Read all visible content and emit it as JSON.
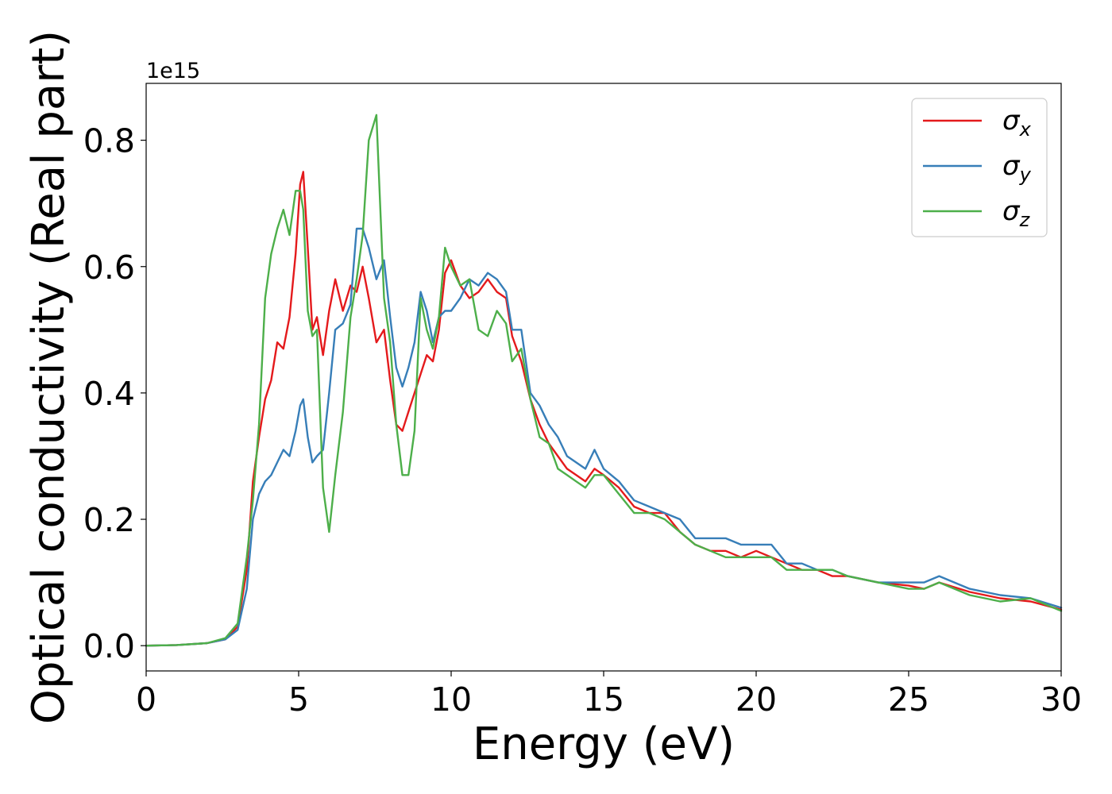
{
  "chart_data": {
    "type": "line",
    "title": "",
    "xlabel": "Energy (eV)",
    "ylabel": "Optical conductivity (Real part)",
    "y_offset_label": "1e15",
    "xlim": [
      0,
      30
    ],
    "ylim": [
      -0.04,
      0.89
    ],
    "xticks": [
      0,
      5,
      10,
      15,
      20,
      25,
      30
    ],
    "xtick_labels": [
      "0",
      "5",
      "10",
      "15",
      "20",
      "25",
      "30"
    ],
    "yticks": [
      0.0,
      0.2,
      0.4,
      0.6,
      0.8
    ],
    "ytick_labels": [
      "0.0",
      "0.2",
      "0.4",
      "0.6",
      "0.8"
    ],
    "grid": false,
    "legend_position": "top-right",
    "series": [
      {
        "name": "σx",
        "symbol": "σ",
        "sub": "x",
        "color": "#e41a1c",
        "x": [
          0,
          1,
          2,
          2.6,
          3.0,
          3.3,
          3.5,
          3.7,
          3.9,
          4.1,
          4.3,
          4.5,
          4.7,
          4.9,
          5.05,
          5.15,
          5.3,
          5.45,
          5.6,
          5.8,
          6.0,
          6.2,
          6.45,
          6.7,
          6.9,
          7.1,
          7.3,
          7.55,
          7.8,
          8.0,
          8.2,
          8.4,
          8.6,
          8.8,
          9.0,
          9.2,
          9.4,
          9.6,
          9.8,
          10.0,
          10.3,
          10.6,
          10.9,
          11.2,
          11.5,
          11.8,
          12.0,
          12.3,
          12.6,
          12.9,
          13.2,
          13.5,
          13.8,
          14.1,
          14.4,
          14.7,
          15.0,
          15.5,
          16.0,
          16.5,
          17.0,
          17.5,
          18.0,
          18.5,
          19.0,
          19.5,
          20.0,
          20.5,
          21.0,
          21.5,
          22.0,
          22.5,
          23.0,
          24.0,
          25.0,
          25.5,
          26.0,
          27.0,
          28.0,
          29.0,
          30.0
        ],
        "y": [
          0.0,
          0.001,
          0.004,
          0.01,
          0.03,
          0.12,
          0.26,
          0.33,
          0.39,
          0.42,
          0.48,
          0.47,
          0.52,
          0.62,
          0.73,
          0.75,
          0.63,
          0.5,
          0.52,
          0.46,
          0.53,
          0.58,
          0.53,
          0.57,
          0.56,
          0.6,
          0.55,
          0.48,
          0.5,
          0.42,
          0.35,
          0.34,
          0.37,
          0.4,
          0.43,
          0.46,
          0.45,
          0.5,
          0.59,
          0.61,
          0.57,
          0.55,
          0.56,
          0.58,
          0.56,
          0.55,
          0.49,
          0.45,
          0.39,
          0.35,
          0.32,
          0.3,
          0.28,
          0.27,
          0.26,
          0.28,
          0.27,
          0.25,
          0.22,
          0.21,
          0.21,
          0.18,
          0.16,
          0.15,
          0.15,
          0.14,
          0.15,
          0.14,
          0.13,
          0.12,
          0.12,
          0.11,
          0.11,
          0.1,
          0.095,
          0.09,
          0.1,
          0.085,
          0.075,
          0.07,
          0.057
        ]
      },
      {
        "name": "σy",
        "symbol": "σ",
        "sub": "y",
        "color": "#377eb8",
        "x": [
          0,
          1,
          2,
          2.6,
          3.0,
          3.3,
          3.5,
          3.7,
          3.9,
          4.1,
          4.3,
          4.5,
          4.7,
          4.9,
          5.05,
          5.15,
          5.3,
          5.45,
          5.6,
          5.8,
          6.0,
          6.2,
          6.45,
          6.7,
          6.9,
          7.1,
          7.3,
          7.55,
          7.8,
          8.0,
          8.2,
          8.4,
          8.6,
          8.8,
          9.0,
          9.2,
          9.4,
          9.6,
          9.8,
          10.0,
          10.3,
          10.6,
          10.9,
          11.2,
          11.5,
          11.8,
          12.0,
          12.3,
          12.6,
          12.9,
          13.2,
          13.5,
          13.8,
          14.1,
          14.4,
          14.7,
          15.0,
          15.5,
          16.0,
          16.5,
          17.0,
          17.5,
          18.0,
          18.5,
          19.0,
          19.5,
          20.0,
          20.5,
          21.0,
          21.5,
          22.0,
          22.5,
          23.0,
          24.0,
          25.0,
          25.5,
          26.0,
          27.0,
          28.0,
          29.0,
          30.0
        ],
        "y": [
          0.0,
          0.001,
          0.004,
          0.01,
          0.025,
          0.09,
          0.2,
          0.24,
          0.26,
          0.27,
          0.29,
          0.31,
          0.3,
          0.34,
          0.38,
          0.39,
          0.33,
          0.29,
          0.3,
          0.31,
          0.4,
          0.5,
          0.51,
          0.54,
          0.66,
          0.66,
          0.63,
          0.58,
          0.61,
          0.52,
          0.44,
          0.41,
          0.44,
          0.48,
          0.56,
          0.53,
          0.48,
          0.52,
          0.53,
          0.53,
          0.55,
          0.58,
          0.57,
          0.59,
          0.58,
          0.56,
          0.5,
          0.5,
          0.4,
          0.38,
          0.35,
          0.33,
          0.3,
          0.29,
          0.28,
          0.31,
          0.28,
          0.26,
          0.23,
          0.22,
          0.21,
          0.2,
          0.17,
          0.17,
          0.17,
          0.16,
          0.16,
          0.16,
          0.13,
          0.13,
          0.12,
          0.12,
          0.11,
          0.1,
          0.1,
          0.1,
          0.11,
          0.09,
          0.08,
          0.075,
          0.06
        ]
      },
      {
        "name": "σz",
        "symbol": "σ",
        "sub": "z",
        "color": "#4daf4a",
        "x": [
          0,
          1,
          2,
          2.6,
          3.0,
          3.3,
          3.5,
          3.7,
          3.9,
          4.1,
          4.3,
          4.5,
          4.7,
          4.9,
          5.05,
          5.15,
          5.3,
          5.45,
          5.6,
          5.8,
          6.0,
          6.2,
          6.45,
          6.7,
          6.9,
          7.1,
          7.3,
          7.55,
          7.8,
          8.0,
          8.2,
          8.4,
          8.6,
          8.8,
          9.0,
          9.2,
          9.4,
          9.6,
          9.8,
          10.0,
          10.3,
          10.6,
          10.9,
          11.2,
          11.5,
          11.8,
          12.0,
          12.3,
          12.6,
          12.9,
          13.2,
          13.5,
          13.8,
          14.1,
          14.4,
          14.7,
          15.0,
          15.5,
          16.0,
          16.5,
          17.0,
          17.5,
          18.0,
          18.5,
          19.0,
          19.5,
          20.0,
          20.5,
          21.0,
          21.5,
          22.0,
          22.5,
          23.0,
          24.0,
          25.0,
          25.5,
          26.0,
          27.0,
          28.0,
          29.0,
          30.0
        ],
        "y": [
          0.0,
          0.001,
          0.004,
          0.012,
          0.035,
          0.14,
          0.23,
          0.35,
          0.55,
          0.62,
          0.66,
          0.69,
          0.65,
          0.72,
          0.72,
          0.69,
          0.53,
          0.49,
          0.5,
          0.25,
          0.18,
          0.27,
          0.37,
          0.52,
          0.58,
          0.65,
          0.8,
          0.84,
          0.55,
          0.48,
          0.35,
          0.27,
          0.27,
          0.34,
          0.55,
          0.5,
          0.47,
          0.52,
          0.63,
          0.6,
          0.57,
          0.58,
          0.5,
          0.49,
          0.53,
          0.51,
          0.45,
          0.47,
          0.39,
          0.33,
          0.32,
          0.28,
          0.27,
          0.26,
          0.25,
          0.27,
          0.27,
          0.24,
          0.21,
          0.21,
          0.2,
          0.18,
          0.16,
          0.15,
          0.14,
          0.14,
          0.14,
          0.14,
          0.12,
          0.12,
          0.12,
          0.12,
          0.11,
          0.1,
          0.09,
          0.09,
          0.1,
          0.08,
          0.07,
          0.075,
          0.055
        ]
      }
    ]
  }
}
